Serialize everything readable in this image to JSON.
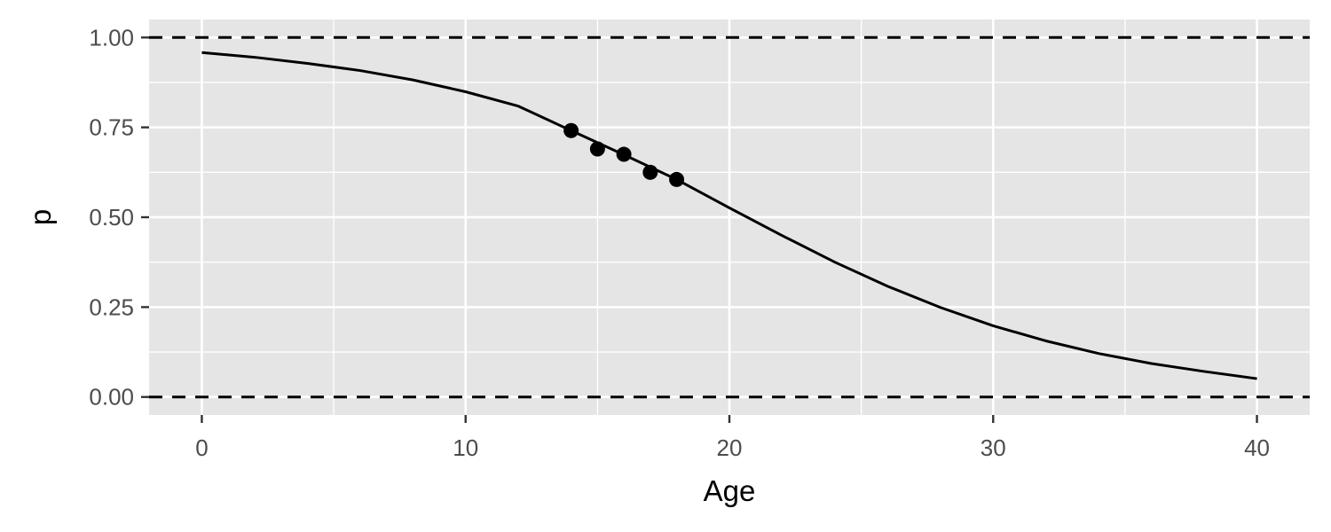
{
  "chart_data": {
    "type": "line",
    "title": "",
    "xlabel": "Age",
    "ylabel": "p",
    "xlim": [
      -2,
      42
    ],
    "ylim": [
      -0.05,
      1.05
    ],
    "x_ticks": [
      0,
      10,
      20,
      30,
      40
    ],
    "x_tick_labels": [
      "0",
      "10",
      "20",
      "30",
      "40"
    ],
    "y_ticks": [
      0,
      0.25,
      0.5,
      0.75,
      1.0
    ],
    "y_tick_labels": [
      "0.00",
      "0.25",
      "0.50",
      "0.75",
      "1.00"
    ],
    "grid": true,
    "reference_lines": [
      {
        "y": 1.0,
        "style": "dashed"
      },
      {
        "y": 0.0,
        "style": "dashed"
      }
    ],
    "curve": {
      "x": [
        0,
        2,
        4,
        6,
        8,
        10,
        12,
        14,
        16,
        18,
        20,
        22,
        24,
        26,
        28,
        30,
        32,
        34,
        36,
        38,
        40
      ],
      "y": [
        0.958,
        0.945,
        0.928,
        0.908,
        0.882,
        0.849,
        0.809,
        0.741,
        0.674,
        0.605,
        0.526,
        0.449,
        0.375,
        0.308,
        0.249,
        0.198,
        0.156,
        0.121,
        0.093,
        0.071,
        0.051
      ]
    },
    "points": {
      "x": [
        14,
        15,
        16,
        17,
        18
      ],
      "y": [
        0.741,
        0.69,
        0.675,
        0.625,
        0.605
      ]
    },
    "colors": {
      "panel_background": "#e5e5e5",
      "gridline": "#ffffff",
      "line": "#000000",
      "point": "#000000"
    }
  }
}
